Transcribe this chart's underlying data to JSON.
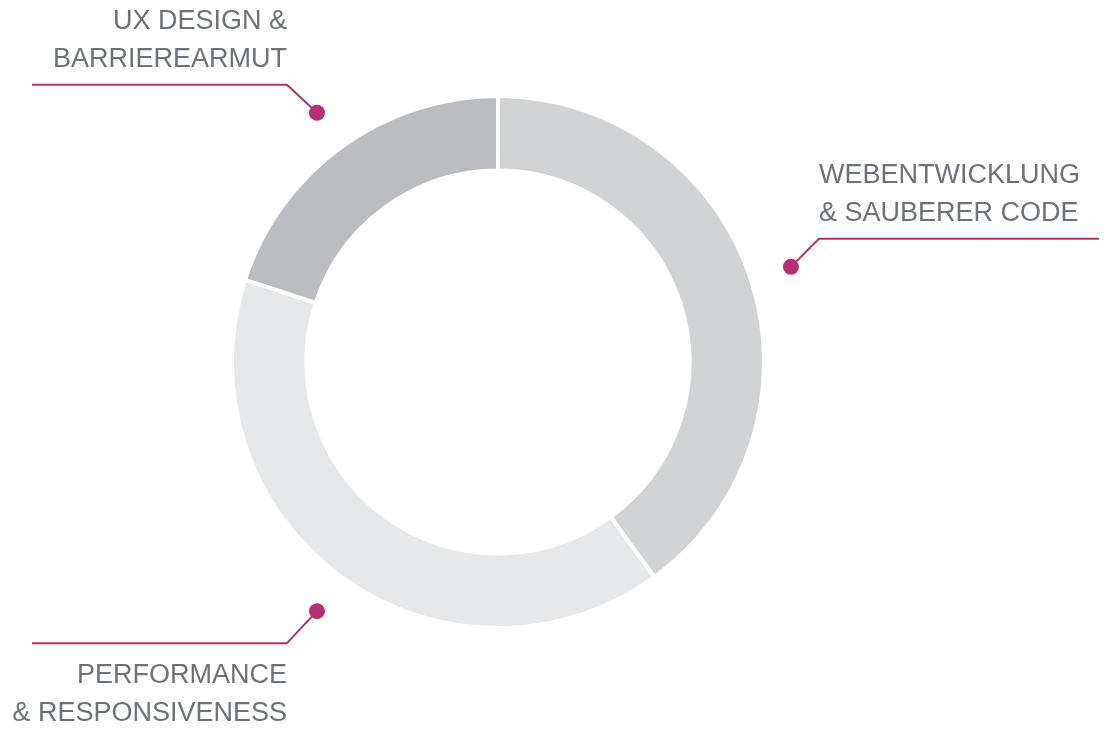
{
  "chart_data": {
    "type": "donut",
    "categories": [
      "WEBENTWICKLUNG\n& SAUBERER CODE",
      "PERFORMANCE\n& RESPONSIVENESS",
      "UX DESIGN &\nBARRIEREARMUT"
    ],
    "values": [
      40,
      40,
      20
    ],
    "colors": [
      "#d1d2d4",
      "#e6e7e8",
      "#bbbcbf"
    ],
    "legend": false
  }
}
